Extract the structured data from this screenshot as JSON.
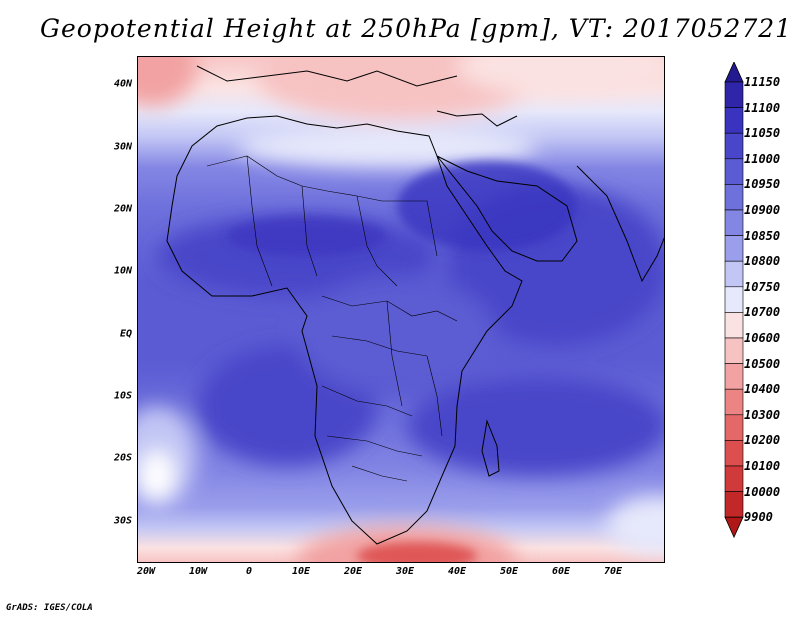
{
  "title": "Geopotential Height at 250hPa [gpm], VT: 2017052721",
  "lat_labels": [
    "40N",
    "30N",
    "20N",
    "10N",
    "EQ",
    "10S",
    "20S",
    "30S"
  ],
  "lon_labels": [
    "20W",
    "10W",
    "0",
    "10E",
    "20E",
    "30E",
    "40E",
    "50E",
    "60E",
    "70E"
  ],
  "colorbar": {
    "levels": [
      "11150",
      "11100",
      "11050",
      "11000",
      "10950",
      "10900",
      "10850",
      "10800",
      "10750",
      "10700",
      "10600",
      "10500",
      "10400",
      "10300",
      "10200",
      "10100",
      "10000",
      "9900"
    ],
    "colors": [
      "#241a8f",
      "#2e25a8",
      "#3a33bf",
      "#4a46c9",
      "#5b5bd3",
      "#6e70dc",
      "#8486e4",
      "#9a9eeb",
      "#c2c6f4",
      "#e6e8fb",
      "#fbe2e2",
      "#f7c2c2",
      "#f2a2a2",
      "#ec8484",
      "#e56868",
      "#dd4f4f",
      "#d13a3a",
      "#c32828",
      "#b01818"
    ]
  },
  "credit": "GrADS: IGES/COLA"
}
